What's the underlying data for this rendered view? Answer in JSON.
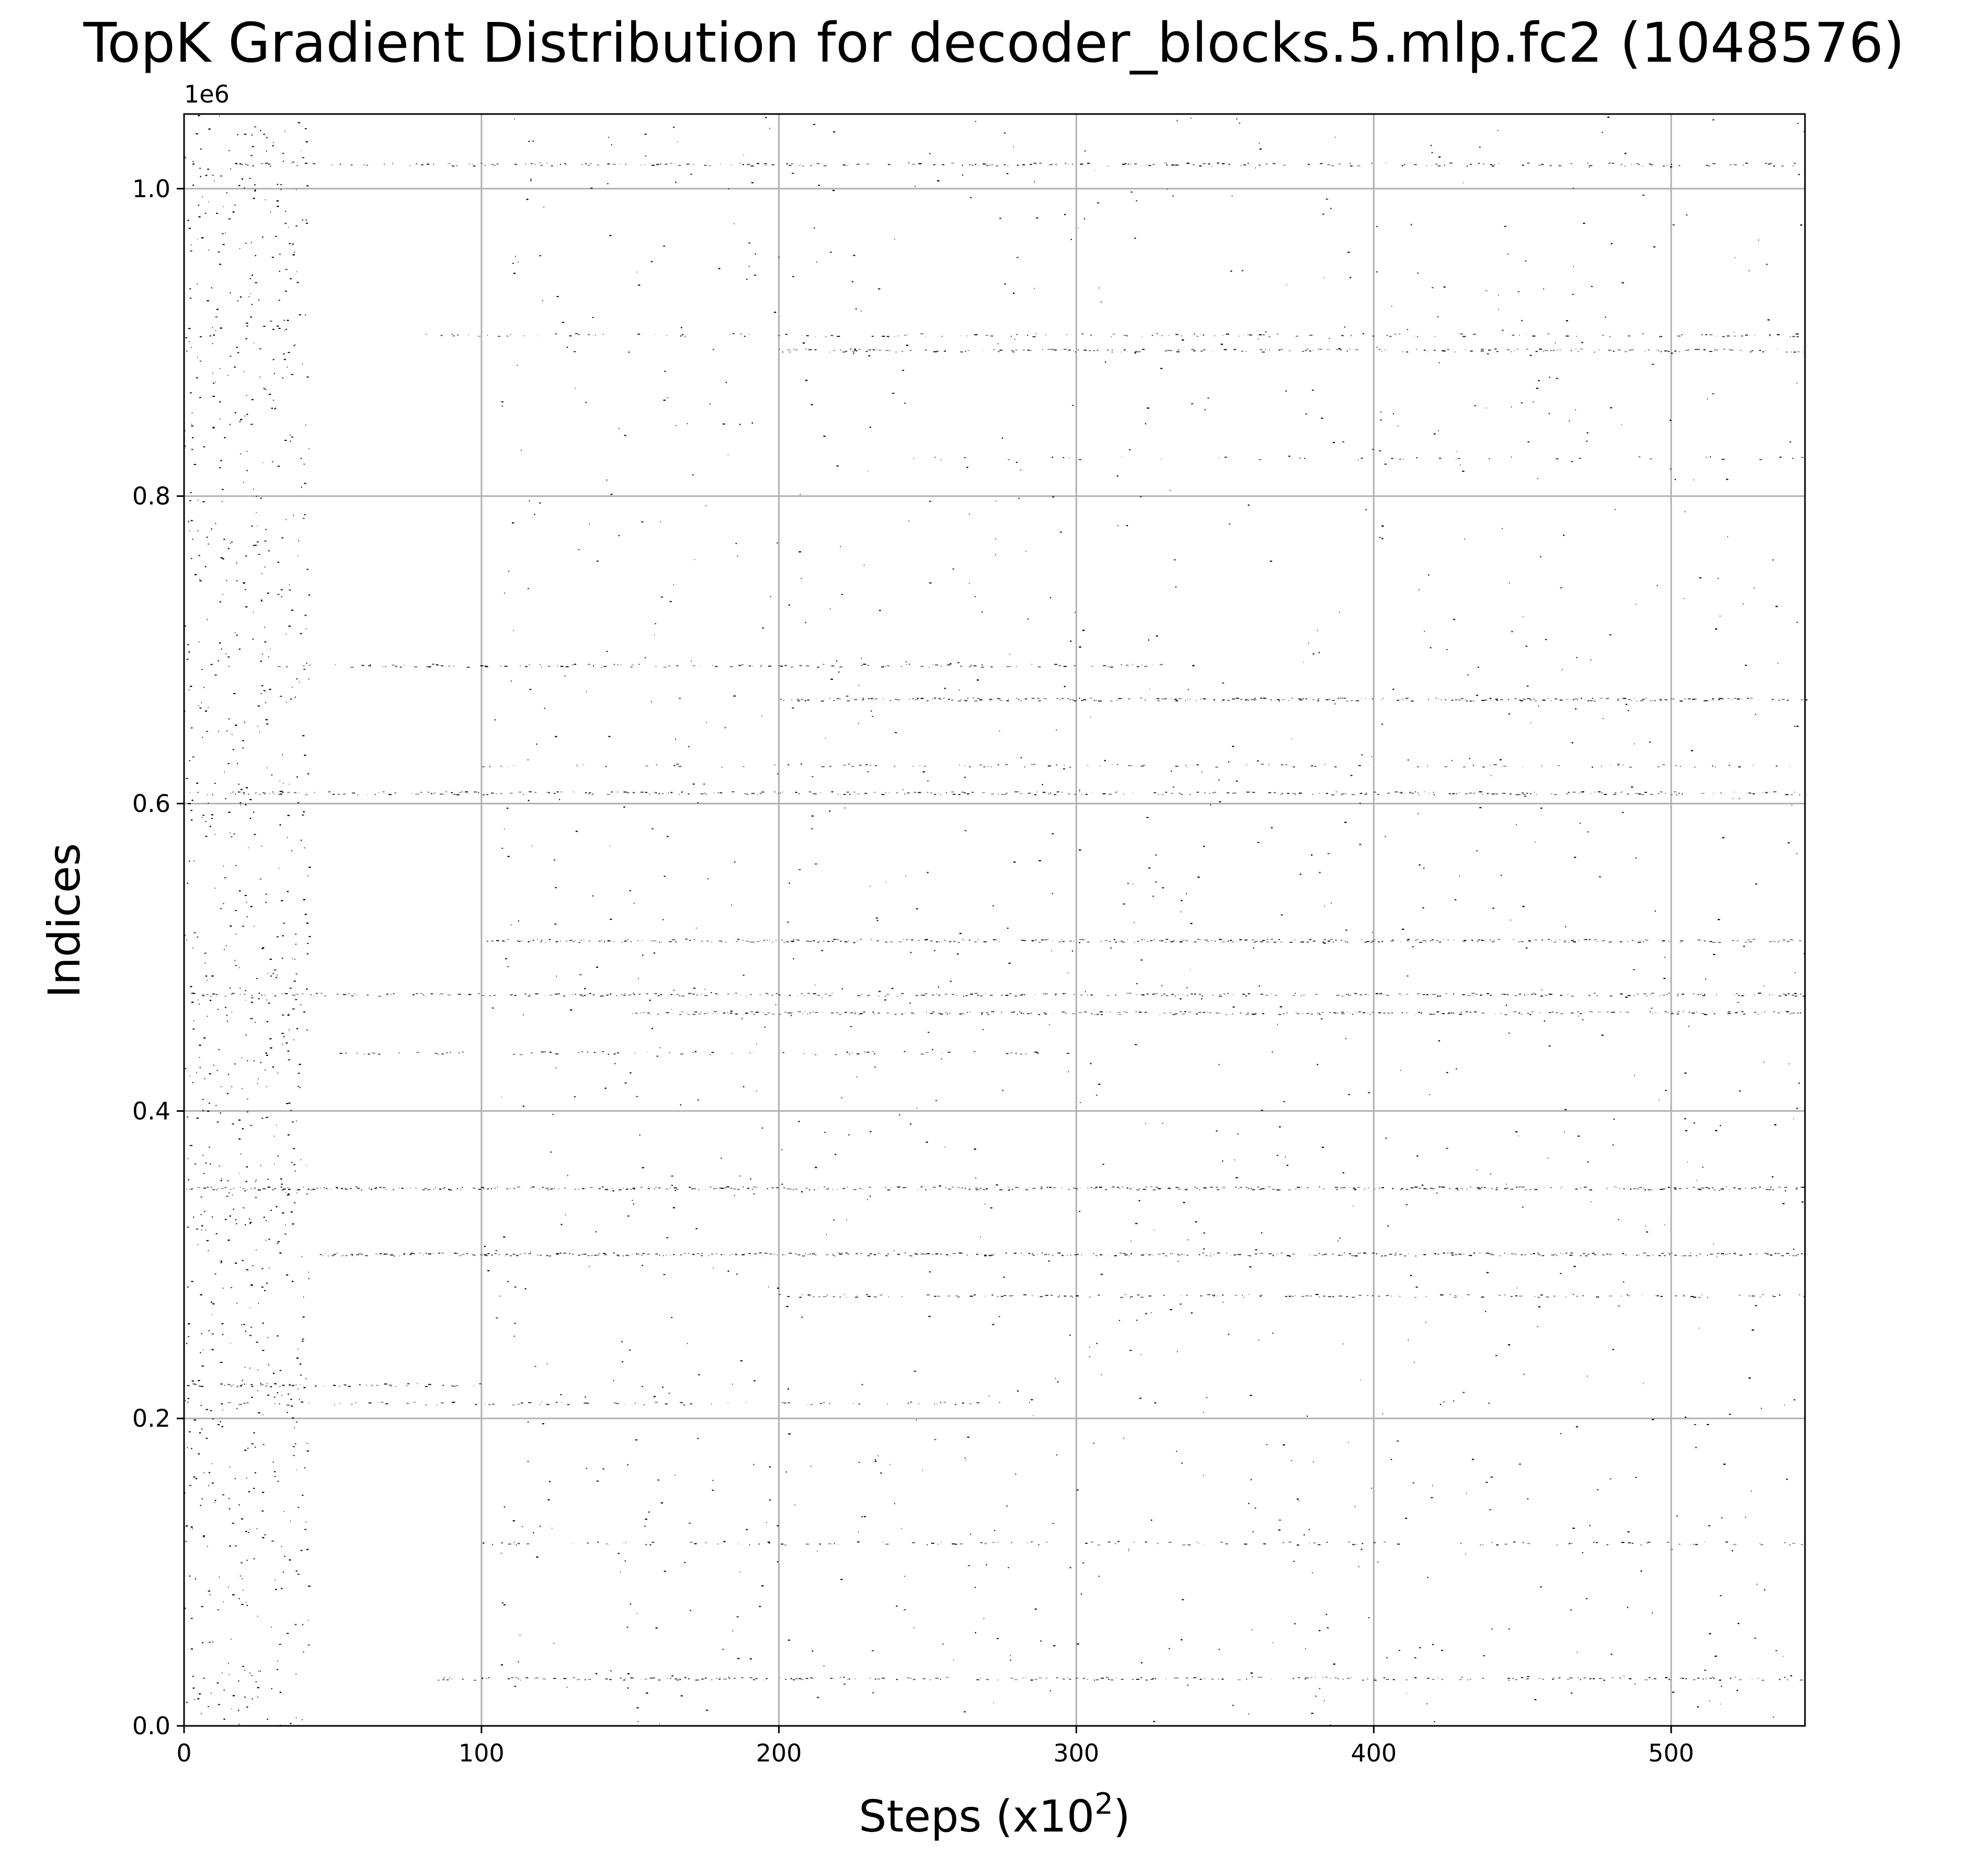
{
  "chart_data": {
    "type": "scatter",
    "title": "TopK Gradient Distribution for decoder_blocks.5.mlp.fc2 (1048576)",
    "xlabel_main": "Steps (x10",
    "xlabel_sup": "2",
    "xlabel_close": ")",
    "ylabel": "Indices",
    "y_offset_label": "1e6",
    "xlim": [
      0,
      545
    ],
    "ylim": [
      0,
      1048576
    ],
    "x_ticks": [
      0,
      100,
      200,
      300,
      400,
      500
    ],
    "x_tick_labels": [
      "0",
      "100",
      "200",
      "300",
      "400",
      "500"
    ],
    "y_ticks": [
      0,
      200000,
      400000,
      600000,
      800000,
      1000000
    ],
    "y_tick_labels": [
      "0.0",
      "0.2",
      "0.4",
      "0.6",
      "0.8",
      "1.0"
    ],
    "grid": true,
    "marker_color": "#000000",
    "dense_bands": [
      {
        "y": 1016000,
        "x_start": 15,
        "x_end": 545,
        "density": 0.45
      },
      {
        "y": 905000,
        "x_start": 80,
        "x_end": 545,
        "density": 0.3
      },
      {
        "y": 895000,
        "x_start": 200,
        "x_end": 545,
        "density": 0.55
      },
      {
        "y": 825000,
        "x_start": 230,
        "x_end": 545,
        "density": 0.15
      },
      {
        "y": 690000,
        "x_start": 30,
        "x_end": 330,
        "density": 0.35
      },
      {
        "y": 668000,
        "x_start": 200,
        "x_end": 545,
        "density": 0.7
      },
      {
        "y": 625000,
        "x_start": 100,
        "x_end": 545,
        "density": 0.25
      },
      {
        "y": 607000,
        "x_start": 0,
        "x_end": 545,
        "density": 0.55
      },
      {
        "y": 511000,
        "x_start": 100,
        "x_end": 545,
        "density": 0.75
      },
      {
        "y": 476000,
        "x_start": 0,
        "x_end": 545,
        "density": 0.55
      },
      {
        "y": 464000,
        "x_start": 150,
        "x_end": 545,
        "density": 0.65
      },
      {
        "y": 438000,
        "x_start": 50,
        "x_end": 300,
        "density": 0.25
      },
      {
        "y": 350000,
        "x_start": 0,
        "x_end": 545,
        "density": 0.7
      },
      {
        "y": 307000,
        "x_start": 45,
        "x_end": 545,
        "density": 0.75
      },
      {
        "y": 280000,
        "x_start": 200,
        "x_end": 545,
        "density": 0.45
      },
      {
        "y": 222000,
        "x_start": 0,
        "x_end": 100,
        "density": 0.45
      },
      {
        "y": 210000,
        "x_start": 0,
        "x_end": 270,
        "density": 0.35
      },
      {
        "y": 119000,
        "x_start": 100,
        "x_end": 545,
        "density": 0.25
      },
      {
        "y": 31000,
        "x_start": 85,
        "x_end": 545,
        "density": 0.5
      }
    ],
    "sparse_region": {
      "x_range": [
        0,
        545
      ],
      "y_range": [
        0,
        1048576
      ],
      "note": "scattered isolated points, denser for steps < 100"
    }
  }
}
